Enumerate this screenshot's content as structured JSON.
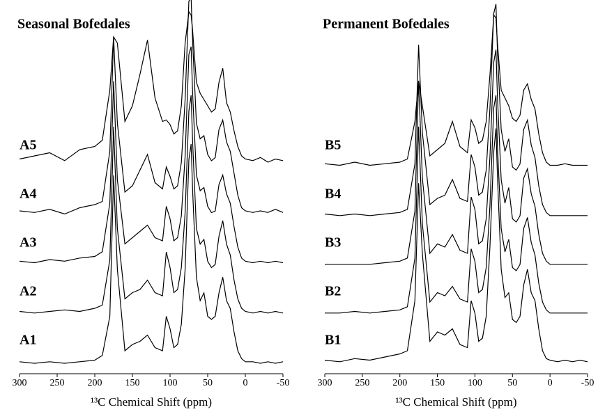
{
  "chart_data": [
    {
      "type": "line",
      "title": "Seasonal Bofedales",
      "xlabel": "¹³C Chemical Shift (ppm)",
      "color": "#000000",
      "x": [
        300,
        280,
        260,
        240,
        220,
        200,
        190,
        180,
        175,
        170,
        160,
        150,
        140,
        130,
        120,
        110,
        105,
        100,
        95,
        90,
        85,
        80,
        75,
        72,
        70,
        65,
        60,
        55,
        50,
        45,
        40,
        35,
        30,
        25,
        20,
        15,
        10,
        5,
        0,
        -10,
        -20,
        -30,
        -40,
        -50
      ],
      "xlim": [
        300,
        -50
      ],
      "xticks": [
        300,
        250,
        200,
        150,
        100,
        50,
        0,
        -50
      ],
      "series": [
        {
          "name": "A1",
          "values": [
            1,
            0,
            1,
            0,
            1,
            2,
            5,
            30,
            120,
            60,
            8,
            12,
            14,
            18,
            10,
            8,
            30,
            22,
            10,
            12,
            25,
            60,
            130,
            140,
            110,
            55,
            40,
            45,
            30,
            28,
            30,
            45,
            55,
            40,
            35,
            20,
            8,
            3,
            1,
            1,
            0,
            1,
            0,
            1
          ]
        },
        {
          "name": "A2",
          "values": [
            2,
            1,
            2,
            3,
            2,
            4,
            6,
            35,
            120,
            55,
            10,
            14,
            16,
            22,
            14,
            12,
            40,
            30,
            14,
            16,
            30,
            65,
            130,
            140,
            110,
            55,
            45,
            48,
            34,
            30,
            32,
            50,
            60,
            45,
            38,
            22,
            10,
            4,
            2,
            1,
            2,
            1,
            2,
            1
          ]
        },
        {
          "name": "A3",
          "values": [
            3,
            2,
            4,
            3,
            5,
            6,
            9,
            40,
            118,
            55,
            14,
            18,
            22,
            26,
            18,
            16,
            38,
            30,
            16,
            18,
            32,
            70,
            135,
            140,
            110,
            58,
            48,
            50,
            38,
            34,
            35,
            52,
            58,
            46,
            40,
            25,
            12,
            5,
            3,
            2,
            3,
            2,
            3,
            2
          ]
        },
        {
          "name": "A4",
          "values": [
            4,
            3,
            5,
            2,
            6,
            8,
            10,
            42,
            115,
            60,
            16,
            20,
            30,
            40,
            22,
            18,
            32,
            26,
            18,
            20,
            35,
            75,
            138,
            140,
            112,
            60,
            50,
            52,
            40,
            36,
            38,
            56,
            62,
            48,
            42,
            28,
            14,
            6,
            4,
            3,
            4,
            3,
            5,
            3
          ]
        },
        {
          "name": "A5",
          "values": [
            6,
            8,
            10,
            5,
            12,
            14,
            18,
            50,
            84,
            80,
            30,
            40,
            60,
            82,
            45,
            30,
            31,
            28,
            22,
            24,
            40,
            80,
            100,
            98,
            88,
            55,
            48,
            44,
            40,
            36,
            38,
            55,
            64,
            42,
            36,
            24,
            14,
            8,
            6,
            5,
            7,
            4,
            6,
            5
          ]
        }
      ]
    },
    {
      "type": "line",
      "title": "Permanent Bofedales",
      "xlabel": "¹³C Chemical Shift (ppm)",
      "color": "#000000",
      "x": [
        300,
        280,
        260,
        240,
        220,
        200,
        190,
        180,
        175,
        170,
        160,
        150,
        140,
        130,
        120,
        110,
        105,
        100,
        95,
        90,
        85,
        80,
        75,
        72,
        70,
        65,
        60,
        55,
        50,
        45,
        40,
        35,
        30,
        25,
        20,
        15,
        10,
        5,
        0,
        -10,
        -20,
        -30,
        -40,
        -50
      ],
      "xlim": [
        300,
        -50
      ],
      "xticks": [
        300,
        250,
        200,
        150,
        100,
        50,
        0,
        -50
      ],
      "series": [
        {
          "name": "B1",
          "values": [
            2,
            1,
            3,
            2,
            4,
            6,
            8,
            40,
            115,
            70,
            14,
            20,
            18,
            22,
            12,
            10,
            40,
            32,
            14,
            16,
            30,
            75,
            135,
            150,
            120,
            60,
            42,
            45,
            28,
            26,
            30,
            50,
            60,
            45,
            40,
            22,
            8,
            3,
            2,
            1,
            2,
            1,
            2,
            1
          ]
        },
        {
          "name": "B2",
          "values": [
            1,
            1,
            2,
            1,
            2,
            3,
            5,
            36,
            120,
            58,
            8,
            14,
            12,
            18,
            10,
            8,
            42,
            34,
            14,
            16,
            30,
            70,
            132,
            140,
            108,
            55,
            40,
            48,
            30,
            28,
            32,
            55,
            62,
            46,
            38,
            20,
            8,
            3,
            1,
            1,
            1,
            1,
            1,
            1
          ]
        },
        {
          "name": "B3",
          "values": [
            1,
            1,
            1,
            1,
            2,
            3,
            5,
            35,
            118,
            56,
            8,
            14,
            12,
            20,
            10,
            8,
            44,
            36,
            14,
            16,
            30,
            70,
            130,
            138,
            108,
            55,
            40,
            50,
            30,
            28,
            32,
            56,
            62,
            46,
            38,
            20,
            8,
            3,
            1,
            1,
            1,
            1,
            1,
            1
          ]
        },
        {
          "name": "B4",
          "values": [
            2,
            1,
            2,
            1,
            2,
            3,
            5,
            34,
            110,
            54,
            8,
            12,
            14,
            24,
            12,
            10,
            40,
            32,
            14,
            16,
            30,
            70,
            130,
            136,
            106,
            56,
            42,
            50,
            32,
            30,
            34,
            56,
            62,
            46,
            38,
            20,
            8,
            3,
            1,
            1,
            1,
            1,
            1,
            1
          ]
        },
        {
          "name": "B5",
          "values": [
            3,
            2,
            4,
            2,
            3,
            4,
            6,
            30,
            56,
            40,
            8,
            12,
            16,
            30,
            14,
            10,
            31,
            26,
            16,
            18,
            30,
            60,
            98,
            96,
            80,
            50,
            45,
            40,
            32,
            30,
            34,
            50,
            54,
            44,
            38,
            22,
            10,
            4,
            2,
            2,
            3,
            2,
            2,
            2
          ]
        }
      ]
    }
  ]
}
